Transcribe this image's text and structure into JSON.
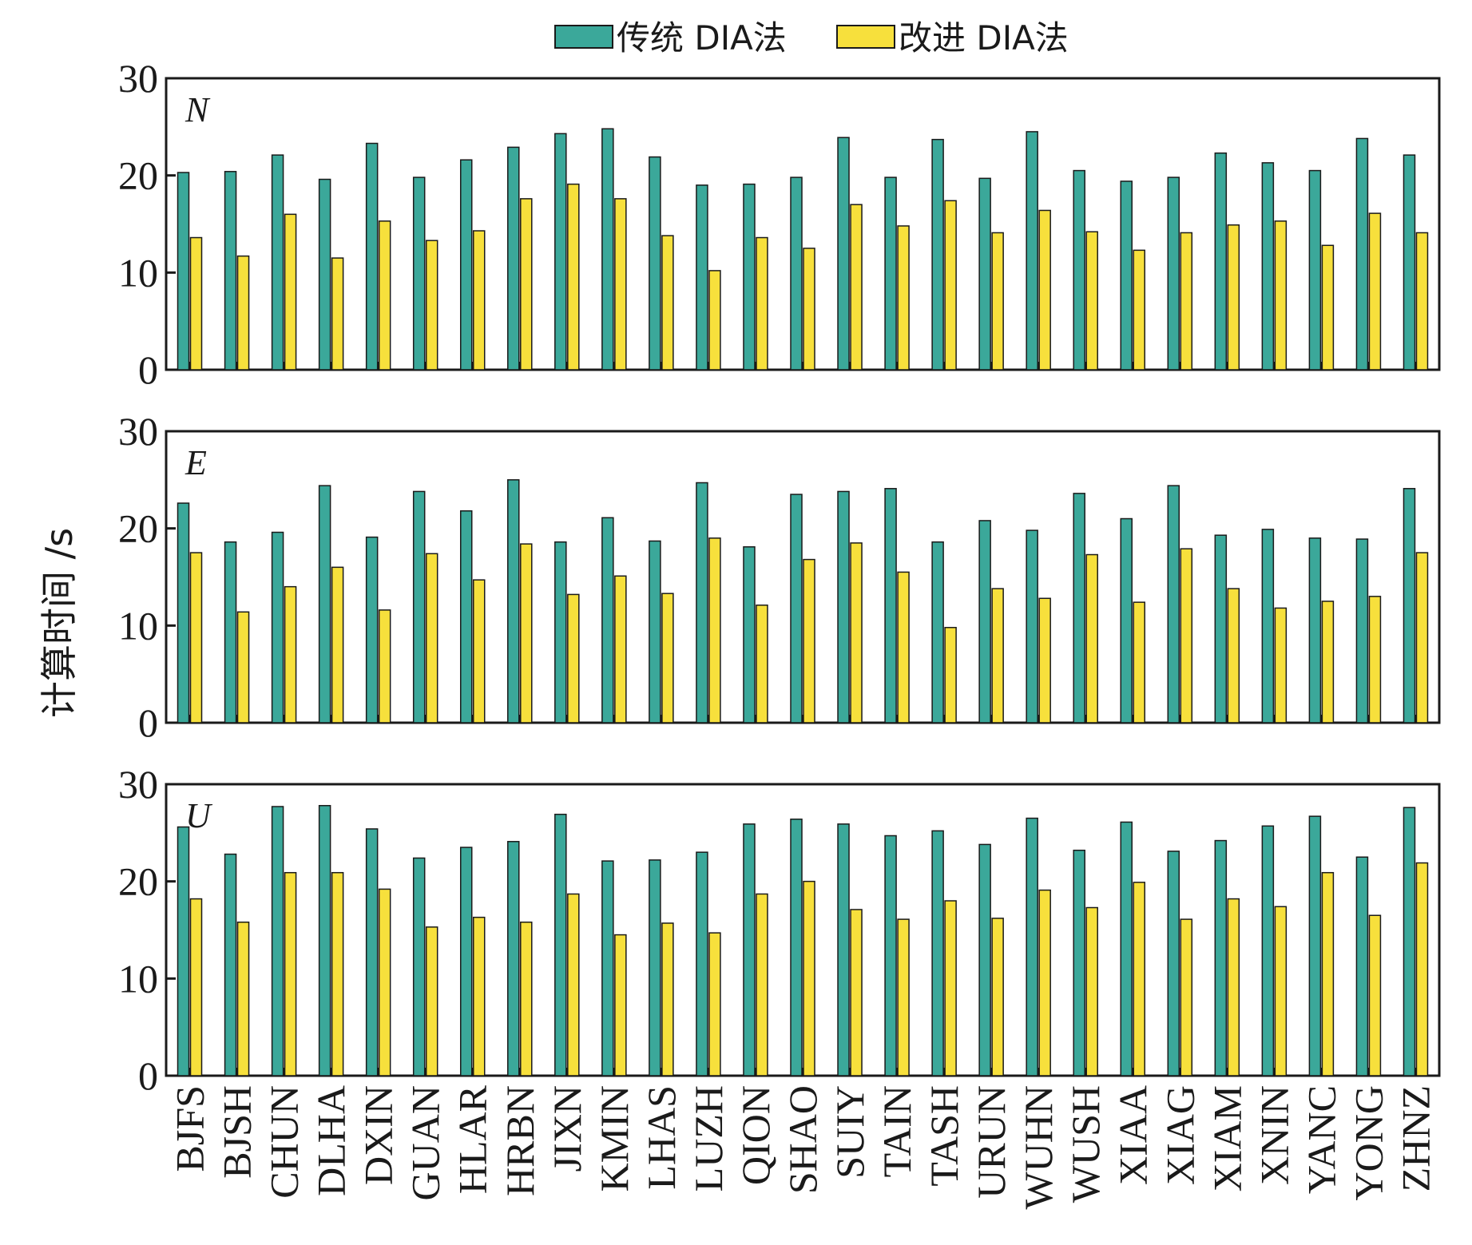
{
  "chart_data": {
    "type": "bar",
    "ylabel": "计算时间 /s",
    "ylim": [
      0,
      30
    ],
    "yticks": [
      0,
      10,
      20,
      30
    ],
    "legend": {
      "placement": "top-center"
    },
    "categories": [
      "BJFS",
      "BJSH",
      "CHUN",
      "DLHA",
      "DXIN",
      "GUAN",
      "HLAR",
      "HRBN",
      "JIXN",
      "KMIN",
      "LHAS",
      "LUZH",
      "QION",
      "SHAO",
      "SUIY",
      "TAIN",
      "TASH",
      "URUN",
      "WUHN",
      "WUSH",
      "XIAA",
      "XIAG",
      "XIAM",
      "XNIN",
      "YANC",
      "YONG",
      "ZHNZ"
    ],
    "series_meta": [
      {
        "name": "传统 DIA法",
        "color": "#3ba89a"
      },
      {
        "name": "改进 DIA法",
        "color": "#f7e03c"
      }
    ],
    "panels": [
      {
        "label": "N",
        "series": [
          {
            "name": "传统 DIA法",
            "values": [
              20.3,
              20.4,
              22.1,
              19.6,
              23.3,
              19.8,
              21.6,
              22.9,
              24.3,
              24.8,
              21.9,
              19.0,
              19.1,
              19.8,
              23.9,
              19.8,
              23.7,
              19.7,
              24.5,
              20.5,
              19.4,
              19.8,
              22.3,
              21.3,
              20.5,
              23.8,
              22.1
            ]
          },
          {
            "name": "改进 DIA法",
            "values": [
              13.6,
              11.7,
              16.0,
              11.5,
              15.3,
              13.3,
              14.3,
              17.6,
              19.1,
              17.6,
              13.8,
              10.2,
              13.6,
              12.5,
              17.0,
              14.8,
              17.4,
              14.1,
              16.4,
              14.2,
              12.3,
              14.1,
              14.9,
              15.3,
              12.8,
              16.1,
              14.1
            ]
          }
        ]
      },
      {
        "label": "E",
        "series": [
          {
            "name": "传统 DIA法",
            "values": [
              22.6,
              18.6,
              19.6,
              24.4,
              19.1,
              23.8,
              21.8,
              25.0,
              18.6,
              21.1,
              18.7,
              24.7,
              18.1,
              23.5,
              23.8,
              24.1,
              18.6,
              20.8,
              19.8,
              23.6,
              21.0,
              24.4,
              19.3,
              19.9,
              19.0,
              18.9,
              24.1
            ]
          },
          {
            "name": "改进 DIA法",
            "values": [
              17.5,
              11.4,
              14.0,
              16.0,
              11.6,
              17.4,
              14.7,
              18.4,
              13.2,
              15.1,
              13.3,
              19.0,
              12.1,
              16.8,
              18.5,
              15.5,
              9.8,
              13.8,
              12.8,
              17.3,
              12.4,
              17.9,
              13.8,
              11.8,
              12.5,
              13.0,
              17.5
            ]
          }
        ]
      },
      {
        "label": "U",
        "series": [
          {
            "name": "传统 DIA法",
            "values": [
              25.6,
              22.8,
              27.7,
              27.8,
              25.4,
              22.4,
              23.5,
              24.1,
              26.9,
              22.1,
              22.2,
              23.0,
              25.9,
              26.4,
              25.9,
              24.7,
              25.2,
              23.8,
              26.5,
              23.2,
              26.1,
              23.1,
              24.2,
              25.7,
              26.7,
              22.5,
              27.6
            ]
          },
          {
            "name": "改进 DIA法",
            "values": [
              18.2,
              15.8,
              20.9,
              20.9,
              19.2,
              15.3,
              16.3,
              15.8,
              18.7,
              14.5,
              15.7,
              14.7,
              18.7,
              20.0,
              17.1,
              16.1,
              18.0,
              16.2,
              19.1,
              17.3,
              19.9,
              16.1,
              18.2,
              17.4,
              20.9,
              16.5,
              21.9
            ]
          }
        ]
      }
    ]
  }
}
